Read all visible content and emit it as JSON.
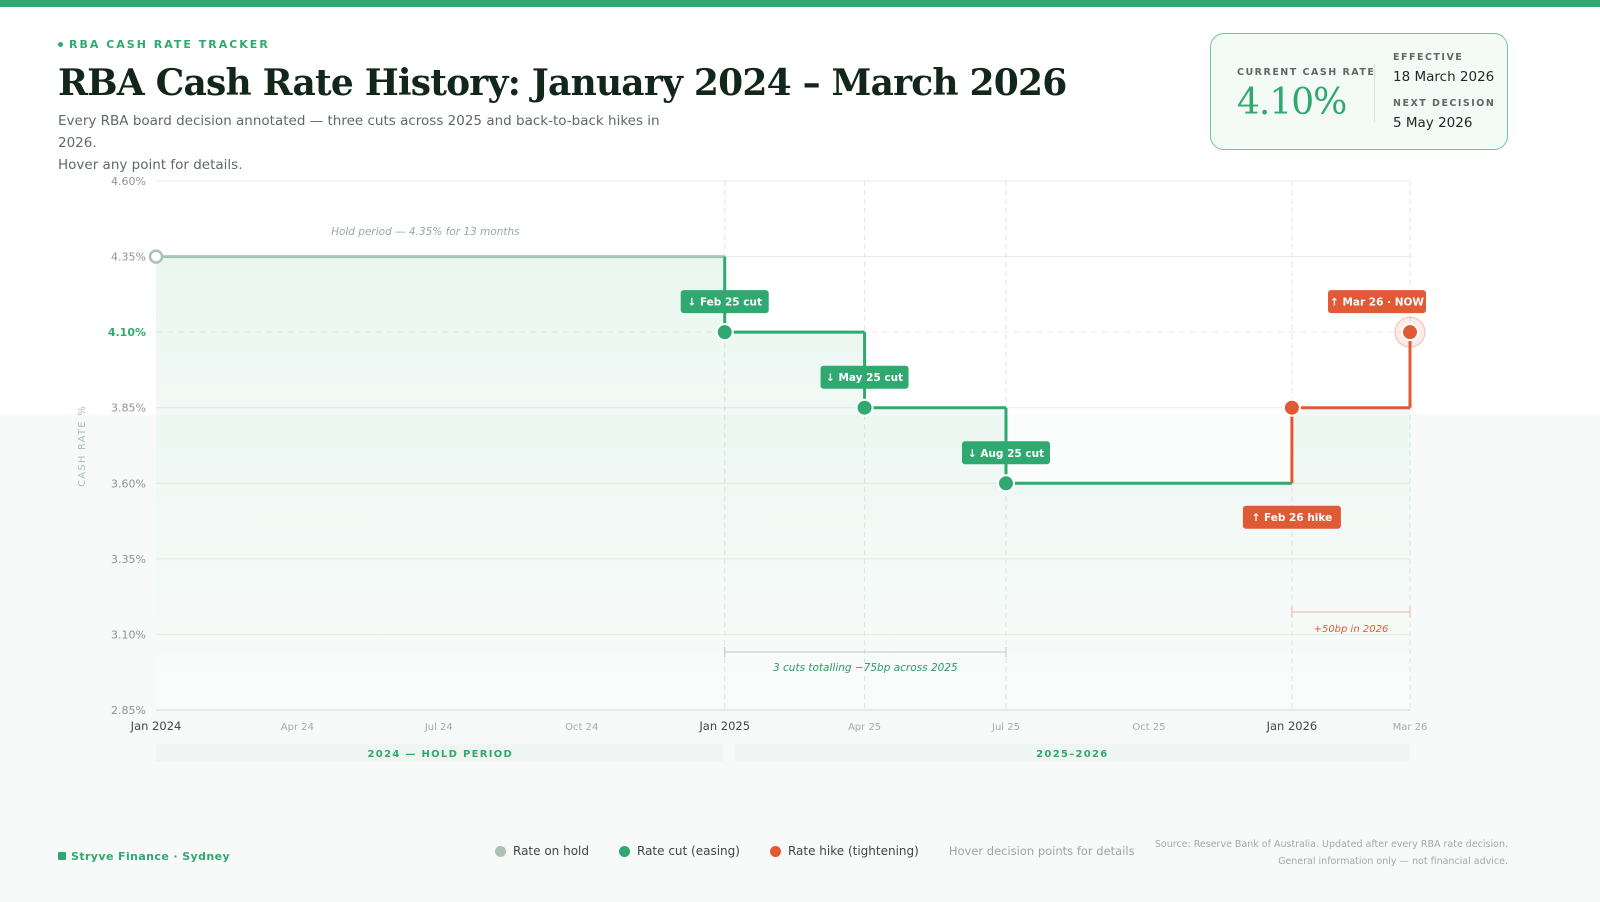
{
  "header": {
    "eyebrow": "RBA CASH RATE TRACKER",
    "title": "RBA Cash Rate History: January 2024 – March 2026",
    "subtitle_line1": "Every RBA board decision annotated — three cuts across 2025 and back-to-back hikes in 2026.",
    "subtitle_line2": "Hover any point for details."
  },
  "rate_card": {
    "current_label": "CURRENT CASH RATE",
    "current_value": "4.10%",
    "effective_label": "EFFECTIVE",
    "effective_value": "18 March 2026",
    "next_label": "NEXT DECISION",
    "next_value": "5 May 2026"
  },
  "colors": {
    "hold": "#a9c3b4",
    "cut": "#2fa96f",
    "hike": "#e05a35",
    "grid": "#e7ece9",
    "axis_text": "#8a9690"
  },
  "chart_data": {
    "type": "line",
    "step": "after",
    "ylabel": "CASH RATE %",
    "ylim": [
      2.85,
      4.6
    ],
    "yticks": [
      {
        "value": 4.6,
        "label": "4.60%"
      },
      {
        "value": 4.35,
        "label": "4.35%"
      },
      {
        "value": 4.1,
        "label": "4.10%",
        "highlight": true
      },
      {
        "value": 3.85,
        "label": "3.85%"
      },
      {
        "value": 3.6,
        "label": "3.60%"
      },
      {
        "value": 3.35,
        "label": "3.35%"
      },
      {
        "value": 3.1,
        "label": "3.10%"
      },
      {
        "value": 2.85,
        "label": "2.85%"
      }
    ],
    "xlim": [
      "2024-01-01",
      "2026-03-18"
    ],
    "xticks": [
      {
        "date": "2024-01-01",
        "label": "Jan 2024",
        "major": true
      },
      {
        "date": "2024-04-01",
        "label": "Apr 24",
        "major": false
      },
      {
        "date": "2024-07-01",
        "label": "Jul 24",
        "major": false
      },
      {
        "date": "2024-10-01",
        "label": "Oct 24",
        "major": false
      },
      {
        "date": "2025-01-01",
        "label": "Jan 2025",
        "major": true
      },
      {
        "date": "2025-04-01",
        "label": "Apr 25",
        "major": false
      },
      {
        "date": "2025-07-01",
        "label": "Jul 25",
        "major": false
      },
      {
        "date": "2025-10-01",
        "label": "Oct 25",
        "major": false
      },
      {
        "date": "2026-01-01",
        "label": "Jan 2026",
        "major": true
      },
      {
        "date": "2026-03-18",
        "label": "Mar 26",
        "major": false
      }
    ],
    "points": [
      {
        "date": "2024-01-01",
        "rate": 4.35,
        "kind": "hold",
        "label": ""
      },
      {
        "date": "2025-01-01",
        "rate": 4.1,
        "kind": "cut",
        "label": "↓ Feb 25 cut"
      },
      {
        "date": "2025-04-01",
        "rate": 3.85,
        "kind": "cut",
        "label": "↓ May 25 cut"
      },
      {
        "date": "2025-07-01",
        "rate": 3.6,
        "kind": "cut",
        "label": "↓ Aug 25 cut"
      },
      {
        "date": "2026-01-01",
        "rate": 3.85,
        "kind": "hike",
        "label": "↑ Feb 26 hike"
      },
      {
        "date": "2026-03-18",
        "rate": 4.1,
        "kind": "hike",
        "label": "↑ Mar 26 · NOW",
        "current": true
      }
    ],
    "annotations": {
      "hold_period": "Hold period — 4.35% for 13 months",
      "cuts_span": "3 cuts totalling −75bp across 2025",
      "hikes_span": "+50bp in 2026"
    },
    "period_bands": [
      {
        "start": "2024-01-01",
        "end": "2025-01-01",
        "label": "2024 — HOLD PERIOD"
      },
      {
        "start": "2025-01-01",
        "end": "2026-03-18",
        "label": "2025–2026"
      }
    ],
    "legend": [
      {
        "kind": "hold",
        "label": "Rate on hold"
      },
      {
        "kind": "cut",
        "label": "Rate cut (easing)"
      },
      {
        "kind": "hike",
        "label": "Rate hike (tightening)"
      }
    ]
  },
  "footer": {
    "brand": "Stryve Finance · Sydney",
    "legend_hint": "Hover decision points for details",
    "source_line1": "Source: Reserve Bank of Australia. Updated after every RBA rate decision.",
    "source_line2": "General information only — not financial advice."
  }
}
